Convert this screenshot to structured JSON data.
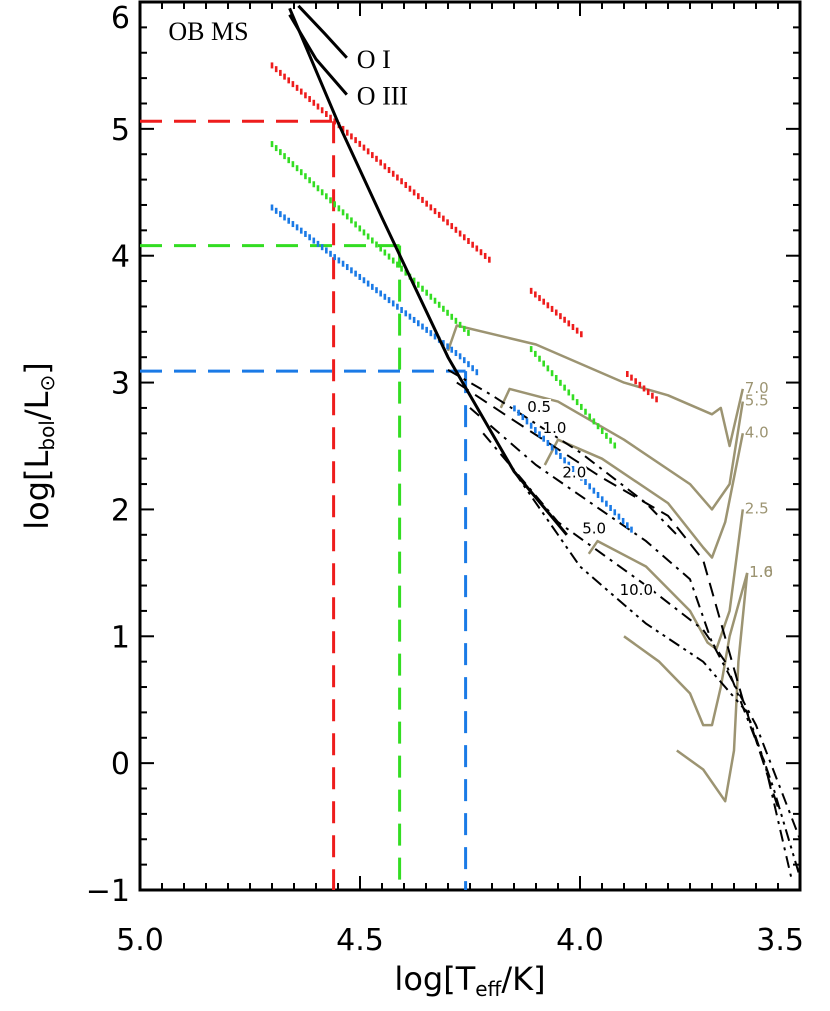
{
  "chart_data": {
    "type": "line",
    "title": "",
    "xlabel": {
      "main": "log[T",
      "sub": "eff",
      "tail": "/K]"
    },
    "ylabel": {
      "main": "log[L",
      "sub": "bol",
      "mid": "/L",
      "tail": "]"
    },
    "xlim": [
      5.0,
      3.5
    ],
    "ylim": [
      -1.0,
      6.0
    ],
    "x_ticks": [
      "5.0",
      "4.5",
      "4.0",
      "3.5"
    ],
    "y_ticks": [
      "−1",
      "0",
      "1",
      "2",
      "3",
      "4",
      "5",
      "6"
    ],
    "grid": false,
    "colors": {
      "red": "#ee1c1c",
      "green": "#33dd22",
      "blue": "#1a7ae6",
      "track": "#9c9472",
      "ms": "#000000",
      "isochrone": "#000000"
    },
    "main_sequence_lines": [
      {
        "label": "OB MS",
        "x": [
          4.66,
          4.55,
          4.45,
          4.3,
          4.15,
          4.03
        ],
        "y": [
          5.95,
          5.05,
          4.3,
          3.2,
          2.3,
          1.8
        ]
      },
      {
        "label": "O III",
        "x": [
          4.66,
          4.6,
          4.53
        ],
        "y": [
          5.9,
          5.55,
          5.27
        ]
      },
      {
        "label": "O I",
        "x": [
          4.64,
          4.58,
          4.53
        ],
        "y": [
          5.97,
          5.75,
          5.56
        ]
      }
    ],
    "dotted_series": [
      {
        "color": "red",
        "x": [
          4.7,
          4.2,
          4.12,
          3.82
        ],
        "y": [
          5.5,
          3.95,
          3.75,
          2.85
        ],
        "gaps": [
          [
            4.2,
            4.12
          ],
          [
            3.99,
            3.9
          ]
        ]
      },
      {
        "color": "green",
        "x": [
          4.7,
          4.25,
          4.12,
          3.92
        ],
        "y": [
          4.88,
          3.38,
          3.3,
          2.5
        ],
        "gaps": [
          [
            4.25,
            4.12
          ]
        ]
      },
      {
        "color": "blue",
        "x": [
          4.7,
          4.27,
          4.15,
          3.88
        ],
        "y": [
          4.38,
          3.2,
          2.8,
          1.83
        ],
        "gaps": [
          [
            4.23,
            4.15
          ]
        ]
      }
    ],
    "reference_lines": [
      {
        "color": "red",
        "x": 4.56,
        "y": 5.06
      },
      {
        "color": "green",
        "x": 4.41,
        "y": 4.08
      },
      {
        "color": "blue",
        "x": 4.26,
        "y": 3.09
      }
    ],
    "tracks": [
      {
        "label": "7.0",
        "x": [
          4.3,
          4.28,
          4.1,
          3.9,
          3.8,
          3.7,
          3.68,
          3.66,
          3.63
        ],
        "y": [
          3.25,
          3.45,
          3.3,
          3.0,
          2.9,
          2.75,
          2.8,
          2.5,
          2.95
        ]
      },
      {
        "label": "5.5",
        "x": [
          4.18,
          4.16,
          4.05,
          3.9,
          3.75,
          3.7,
          3.66,
          3.63
        ],
        "y": [
          2.8,
          2.95,
          2.85,
          2.55,
          2.2,
          2.0,
          2.2,
          2.85
        ]
      },
      {
        "label": "4.0",
        "x": [
          4.08,
          4.05,
          3.95,
          3.8,
          3.72,
          3.7,
          3.67,
          3.63
        ],
        "y": [
          2.35,
          2.55,
          2.4,
          2.05,
          1.7,
          1.62,
          1.9,
          2.6
        ]
      },
      {
        "label": "2.5",
        "x": [
          3.98,
          3.96,
          3.85,
          3.75,
          3.71,
          3.69,
          3.66,
          3.63
        ],
        "y": [
          1.65,
          1.75,
          1.55,
          1.2,
          0.95,
          0.9,
          1.2,
          2.0
        ]
      },
      {
        "label": "1.6",
        "x": [
          3.9,
          3.82,
          3.75,
          3.72,
          3.7,
          3.68,
          3.66,
          3.62
        ],
        "y": [
          1.0,
          0.8,
          0.55,
          0.3,
          0.3,
          0.6,
          1.0,
          1.5
        ]
      },
      {
        "label": "1.0",
        "x": [
          3.78,
          3.72,
          3.67,
          3.65,
          3.64,
          3.62
        ],
        "y": [
          0.1,
          -0.05,
          -0.3,
          0.1,
          0.8,
          1.5
        ]
      }
    ],
    "isochrones": [
      {
        "label": "0.5",
        "dash": "dashdot",
        "x": [
          4.3,
          4.2,
          4.0,
          3.85,
          3.78
        ],
        "y": [
          3.1,
          2.9,
          2.45,
          2.05,
          1.8
        ]
      },
      {
        "label": "1.0",
        "dash": "dash",
        "x": [
          4.28,
          4.15,
          3.95,
          3.8,
          3.72,
          3.63,
          3.55
        ],
        "y": [
          3.0,
          2.7,
          2.25,
          1.95,
          1.6,
          0.5,
          -0.35
        ]
      },
      {
        "label": "2.0",
        "dash": "dashdot",
        "x": [
          4.25,
          4.1,
          3.85,
          3.75,
          3.7,
          3.6,
          3.5
        ],
        "y": [
          2.8,
          2.35,
          1.75,
          1.45,
          0.95,
          0.3,
          -0.6
        ]
      },
      {
        "label": "5.0",
        "dash": "dashdot",
        "x": [
          4.22,
          4.05,
          3.85,
          3.72,
          3.67,
          3.58,
          3.52
        ],
        "y": [
          2.6,
          1.9,
          1.4,
          1.05,
          0.8,
          0.0,
          -0.9
        ]
      },
      {
        "label": "10.0",
        "dash": "dashdotdot",
        "x": [
          4.15,
          4.0,
          3.85,
          3.72,
          3.62,
          3.56,
          3.5
        ],
        "y": [
          2.3,
          1.55,
          1.1,
          0.8,
          0.4,
          -0.2,
          -0.9
        ]
      }
    ]
  }
}
